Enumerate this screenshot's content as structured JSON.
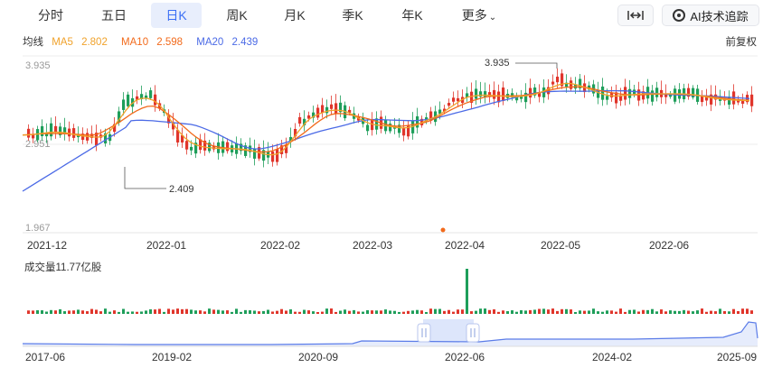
{
  "tabs": [
    {
      "label": "分时"
    },
    {
      "label": "五日"
    },
    {
      "label": "日K",
      "active": true
    },
    {
      "label": "周K"
    },
    {
      "label": "月K"
    },
    {
      "label": "季K"
    },
    {
      "label": "年K"
    },
    {
      "label": "更多"
    }
  ],
  "toolbar": {
    "fit_icon": "horizontal-resize-icon",
    "ai_label": "AI技术追踪"
  },
  "ma": {
    "title": "均线",
    "items": [
      {
        "name": "MA5",
        "value": "2.802",
        "color": "#f0a22b"
      },
      {
        "name": "MA10",
        "value": "2.598",
        "color": "#f26a1b"
      },
      {
        "name": "MA20",
        "value": "2.439",
        "color": "#4b6ae6"
      }
    ]
  },
  "adjust_label": "前复权",
  "price_axis": [
    "3.935",
    "2.951",
    "1.967"
  ],
  "annotations": {
    "high": "3.935",
    "low": "2.409"
  },
  "date_axis": [
    "2021-12",
    "2022-01",
    "2022-02",
    "2022-03",
    "2022-04",
    "2022-05",
    "2022-06"
  ],
  "volume_label": "成交量11.77亿股",
  "range_axis": [
    "2017-06",
    "2019-02",
    "2020-09",
    "2022-06",
    "2024-02",
    "2025-09"
  ],
  "colors": {
    "up": "#e0352b",
    "down": "#1e9e5a",
    "ma5": "#f0a22b",
    "ma10": "#f26a1b",
    "ma20": "#4b6ae6",
    "accent": "#3b6ff5"
  }
}
